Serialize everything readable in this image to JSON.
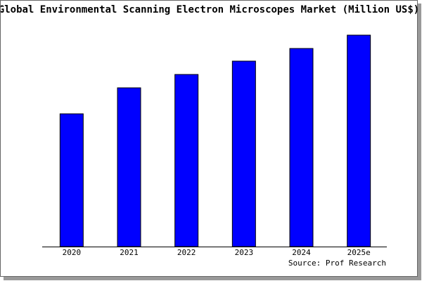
{
  "chart_data": {
    "type": "bar",
    "title": "Global Environmental Scanning Electron Microscopes Market (Million US$)",
    "categories": [
      "2020",
      "2021",
      "2022",
      "2023",
      "2024",
      "2025e"
    ],
    "values": [
      189,
      226,
      245,
      264,
      282,
      301
    ],
    "color": "#0000ff",
    "source": "Source: Prof Research"
  }
}
